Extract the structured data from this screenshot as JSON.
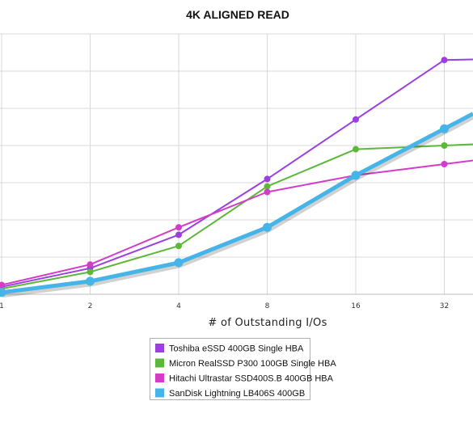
{
  "chart_data": {
    "type": "line",
    "title": "4K ALIGNED READ",
    "xlabel": "# of Outstanding I/Os",
    "ylabel": "",
    "x_scale": "log2",
    "categories": [
      "1",
      "2",
      "4",
      "8",
      "16",
      "32"
    ],
    "x": [
      1,
      2,
      4,
      8,
      16,
      32
    ],
    "grid": true,
    "legend_position": "bottom",
    "series": [
      {
        "name": "Toshiba eSSD 400GB Single HBA",
        "color": "#9b3fe0",
        "values": [
          0.2,
          0.7,
          1.6,
          3.1,
          4.7,
          6.3
        ]
      },
      {
        "name": "Micron RealSSD P300 100GB Single HBA",
        "color": "#5cb83a",
        "values": [
          0.15,
          0.6,
          1.3,
          2.9,
          3.9,
          4.0
        ]
      },
      {
        "name": "Hitachi Ultrastar SSD400S.B 400GB HBA",
        "color": "#d43cc8",
        "values": [
          0.25,
          0.8,
          1.8,
          2.75,
          3.2,
          3.5
        ]
      },
      {
        "name": "SanDisk Lightning LB406S 400GB",
        "color": "#45b4e8",
        "values": [
          0.05,
          0.35,
          0.85,
          1.8,
          3.2,
          4.45
        ]
      }
    ]
  }
}
